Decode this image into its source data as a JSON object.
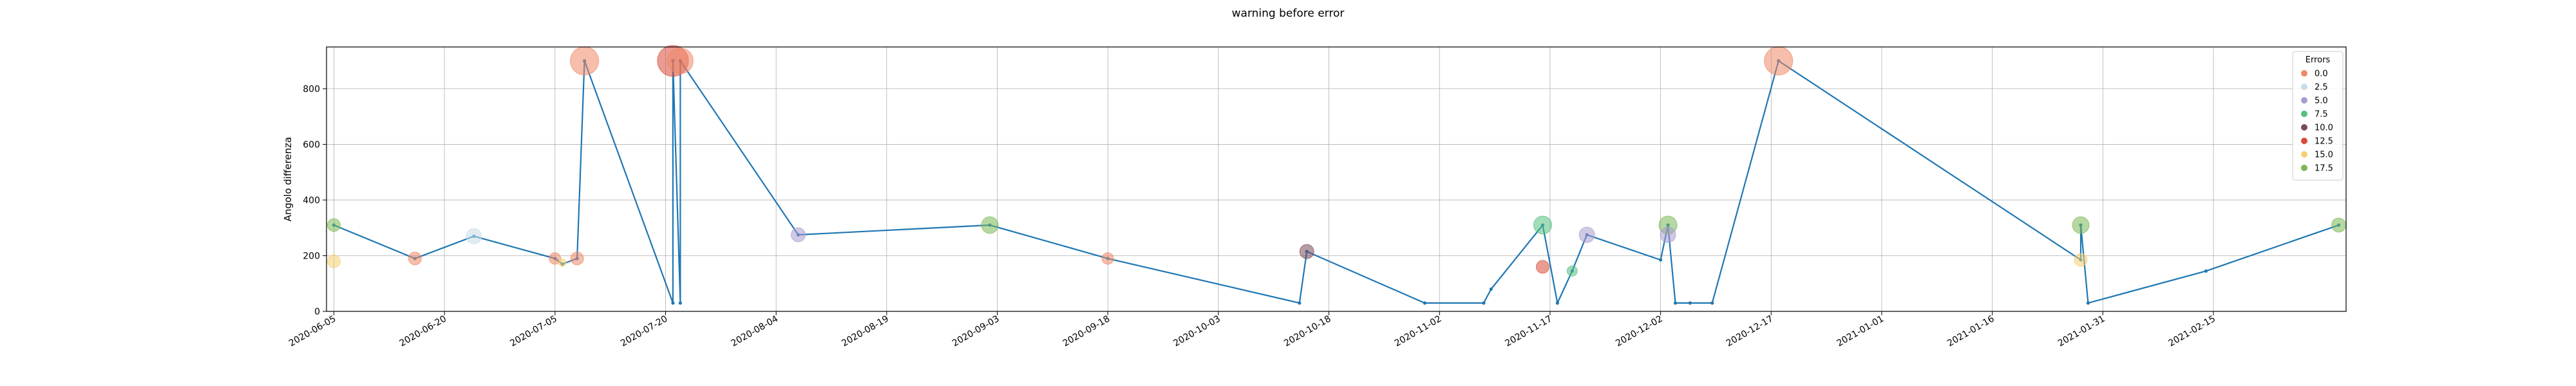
{
  "chart_data": {
    "type": "scatter",
    "title": "warning before error",
    "xlabel": "",
    "ylabel": "Angolo differenza",
    "x_axis_type": "date",
    "xlim": [
      "2020-06-04",
      "2021-03-05"
    ],
    "ylim": [
      0,
      950
    ],
    "y_ticks": [
      0,
      200,
      400,
      600,
      800
    ],
    "x_ticks": [
      "2020-06-05",
      "2020-06-20",
      "2020-07-05",
      "2020-07-20",
      "2020-08-04",
      "2020-08-19",
      "2020-09-03",
      "2020-09-18",
      "2020-10-03",
      "2020-10-18",
      "2020-11-02",
      "2020-11-17",
      "2020-12-02",
      "2020-12-17",
      "2021-01-01",
      "2021-01-16",
      "2021-01-31",
      "2021-02-15"
    ],
    "grid": true,
    "legend": {
      "title": "Errors",
      "placement": "top-right",
      "entries": [
        {
          "label": "0.0",
          "color": "#ee8866"
        },
        {
          "label": "2.5",
          "color": "#c8dde8"
        },
        {
          "label": "5.0",
          "color": "#a99bd0"
        },
        {
          "label": "7.5",
          "color": "#55c080"
        },
        {
          "label": "10.0",
          "color": "#7a4a5a"
        },
        {
          "label": "12.5",
          "color": "#d84b3a"
        },
        {
          "label": "15.0",
          "color": "#f5d070"
        },
        {
          "label": "17.5",
          "color": "#7ab855"
        }
      ]
    },
    "line_color": "#1f77b4",
    "line": [
      {
        "x": "2020-06-05",
        "y": 310
      },
      {
        "x": "2020-06-16",
        "y": 190
      },
      {
        "x": "2020-06-24",
        "y": 270
      },
      {
        "x": "2020-07-05",
        "y": 190
      },
      {
        "x": "2020-07-06",
        "y": 170
      },
      {
        "x": "2020-07-08",
        "y": 190
      },
      {
        "x": "2020-07-09",
        "y": 900
      },
      {
        "x": "2020-07-21",
        "y": 30
      },
      {
        "x": "2020-07-21",
        "y": 900
      },
      {
        "x": "2020-07-22",
        "y": 30
      },
      {
        "x": "2020-07-22",
        "y": 900
      },
      {
        "x": "2020-08-07",
        "y": 275
      },
      {
        "x": "2020-09-02",
        "y": 310
      },
      {
        "x": "2020-09-18",
        "y": 190
      },
      {
        "x": "2020-10-14",
        "y": 30
      },
      {
        "x": "2020-10-15",
        "y": 215
      },
      {
        "x": "2020-10-31",
        "y": 30
      },
      {
        "x": "2020-11-08",
        "y": 30
      },
      {
        "x": "2020-11-09",
        "y": 80
      },
      {
        "x": "2020-11-16",
        "y": 310
      },
      {
        "x": "2020-11-18",
        "y": 30
      },
      {
        "x": "2020-11-20",
        "y": 145
      },
      {
        "x": "2020-11-22",
        "y": 275
      },
      {
        "x": "2020-12-02",
        "y": 185
      },
      {
        "x": "2020-12-03",
        "y": 310
      },
      {
        "x": "2020-12-04",
        "y": 30
      },
      {
        "x": "2020-12-06",
        "y": 30
      },
      {
        "x": "2020-12-09",
        "y": 30
      },
      {
        "x": "2020-12-18",
        "y": 900
      },
      {
        "x": "2021-01-28",
        "y": 185
      },
      {
        "x": "2021-01-28",
        "y": 310
      },
      {
        "x": "2021-01-29",
        "y": 30
      },
      {
        "x": "2021-02-14",
        "y": 145
      },
      {
        "x": "2021-03-04",
        "y": 310
      }
    ],
    "points": [
      {
        "x": "2020-06-05",
        "y": 310,
        "errors": 17.5,
        "size": 10
      },
      {
        "x": "2020-06-05",
        "y": 180,
        "errors": 15.0,
        "size": 10
      },
      {
        "x": "2020-06-16",
        "y": 190,
        "errors": 0.0,
        "size": 10
      },
      {
        "x": "2020-06-24",
        "y": 270,
        "errors": 2.5,
        "size": 12
      },
      {
        "x": "2020-07-05",
        "y": 190,
        "errors": 0.0,
        "size": 9
      },
      {
        "x": "2020-07-06",
        "y": 175,
        "errors": 15.0,
        "size": 6
      },
      {
        "x": "2020-07-08",
        "y": 190,
        "errors": 0.0,
        "size": 10
      },
      {
        "x": "2020-07-09",
        "y": 900,
        "errors": 0.0,
        "size": 22
      },
      {
        "x": "2020-07-21",
        "y": 900,
        "errors": 12.5,
        "size": 24
      },
      {
        "x": "2020-07-22",
        "y": 900,
        "errors": 0.0,
        "size": 20
      },
      {
        "x": "2020-08-07",
        "y": 275,
        "errors": 5.0,
        "size": 11
      },
      {
        "x": "2020-09-02",
        "y": 310,
        "errors": 17.5,
        "size": 13
      },
      {
        "x": "2020-09-18",
        "y": 190,
        "errors": 0.0,
        "size": 9
      },
      {
        "x": "2020-10-15",
        "y": 215,
        "errors": 10.0,
        "size": 11
      },
      {
        "x": "2020-11-16",
        "y": 310,
        "errors": 7.5,
        "size": 14
      },
      {
        "x": "2020-11-16",
        "y": 160,
        "errors": 12.5,
        "size": 10
      },
      {
        "x": "2020-11-20",
        "y": 145,
        "errors": 7.5,
        "size": 8
      },
      {
        "x": "2020-11-22",
        "y": 275,
        "errors": 5.0,
        "size": 12
      },
      {
        "x": "2020-12-03",
        "y": 310,
        "errors": 17.5,
        "size": 14
      },
      {
        "x": "2020-12-03",
        "y": 275,
        "errors": 5.0,
        "size": 12
      },
      {
        "x": "2020-12-18",
        "y": 900,
        "errors": 0.0,
        "size": 22
      },
      {
        "x": "2021-01-28",
        "y": 310,
        "errors": 17.5,
        "size": 13
      },
      {
        "x": "2021-01-28",
        "y": 185,
        "errors": 15.0,
        "size": 10
      },
      {
        "x": "2021-03-04",
        "y": 310,
        "errors": 17.5,
        "size": 11
      }
    ]
  }
}
